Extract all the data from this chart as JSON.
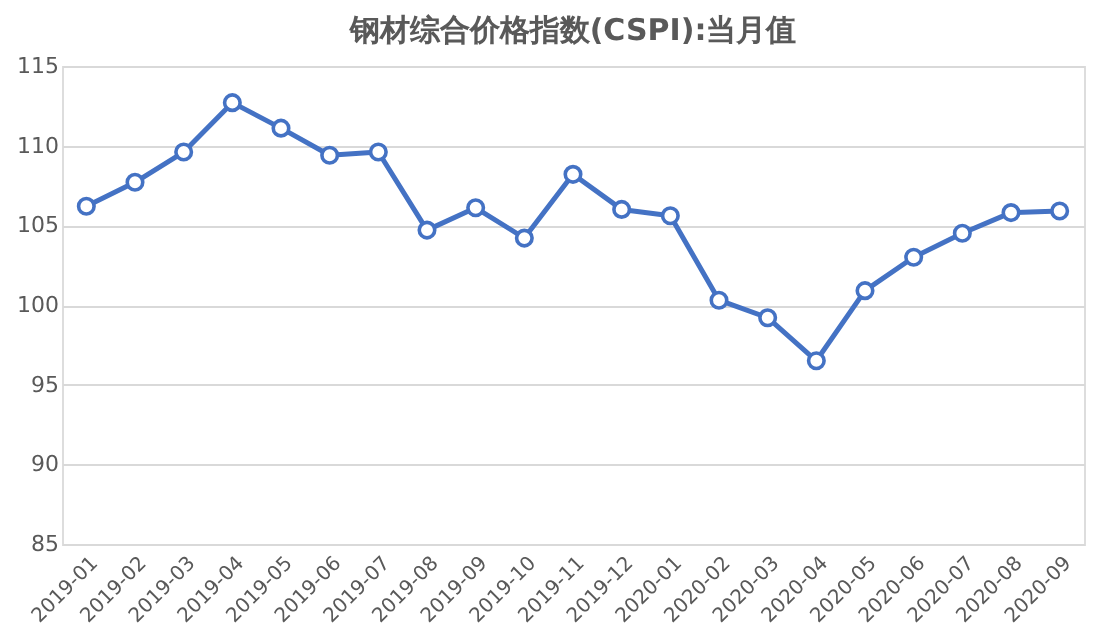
{
  "chart_data": {
    "type": "line",
    "title": "钢材综合价格指数(CSPI):当月值",
    "categories": [
      "2019-01",
      "2019-02",
      "2019-03",
      "2019-04",
      "2019-05",
      "2019-06",
      "2019-07",
      "2019-08",
      "2019-09",
      "2019-10",
      "2019-11",
      "2019-12",
      "2020-01",
      "2020-02",
      "2020-03",
      "2020-04",
      "2020-05",
      "2020-06",
      "2020-07",
      "2020-08",
      "2020-09"
    ],
    "series": [
      {
        "color": "#4472c4",
        "values": [
          106.2,
          107.7,
          109.6,
          112.7,
          111.1,
          109.4,
          109.6,
          104.7,
          106.1,
          104.2,
          108.2,
          106.0,
          105.6,
          100.3,
          99.2,
          96.5,
          100.9,
          103.0,
          104.5,
          105.8,
          105.9
        ]
      }
    ],
    "ylim": [
      85,
      115
    ],
    "yticks": [
      85,
      90,
      95,
      100,
      105,
      110,
      115
    ],
    "grid": "y",
    "marker": "circle",
    "line_style": "solid",
    "legend": false
  }
}
